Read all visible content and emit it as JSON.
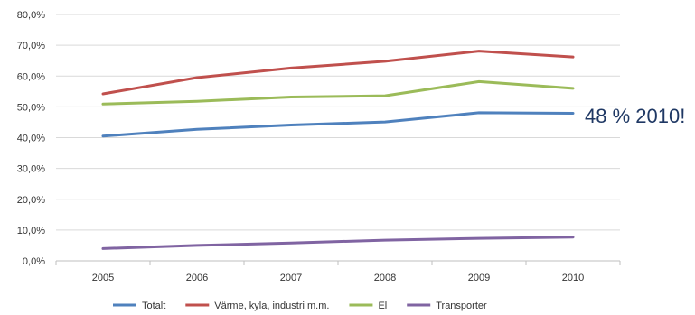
{
  "chart_data": {
    "type": "line",
    "title": "",
    "xlabel": "",
    "ylabel": "",
    "categories": [
      "2005",
      "2006",
      "2007",
      "2008",
      "2009",
      "2010"
    ],
    "ylim": [
      0,
      80
    ],
    "y_ticks": [
      "0,0%",
      "10,0%",
      "20,0%",
      "30,0%",
      "40,0%",
      "50,0%",
      "60,0%",
      "70,0%",
      "80,0%"
    ],
    "grid": true,
    "legend_position": "bottom",
    "series": [
      {
        "name": "Totalt",
        "color": "#4f81bd",
        "values": [
          40.5,
          42.7,
          44.1,
          45.1,
          48.1,
          47.9
        ]
      },
      {
        "name": "Värme, kyla, industri m.m.",
        "color": "#c0504d",
        "values": [
          54.2,
          59.5,
          62.6,
          64.8,
          68.1,
          66.2
        ]
      },
      {
        "name": "El",
        "color": "#9bbb59",
        "values": [
          50.9,
          51.8,
          53.2,
          53.6,
          58.2,
          56.0
        ]
      },
      {
        "name": "Transporter",
        "color": "#8064a2",
        "values": [
          4.0,
          5.0,
          5.8,
          6.7,
          7.3,
          7.7
        ]
      }
    ],
    "annotation": "48 % 2010!"
  }
}
